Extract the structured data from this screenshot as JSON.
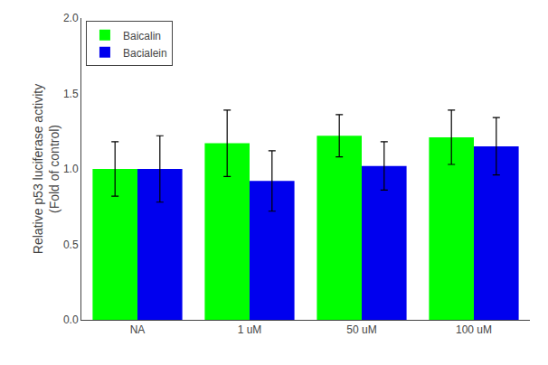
{
  "chart_data": {
    "type": "bar",
    "categories": [
      "NA",
      "1 uM",
      "50 uM",
      "100 uM"
    ],
    "series": [
      {
        "name": "Baicalin",
        "color": "#00FF00",
        "values": [
          1.0,
          1.17,
          1.22,
          1.21
        ],
        "errors": [
          0.18,
          0.22,
          0.14,
          0.18
        ]
      },
      {
        "name": "Bacialein",
        "color": "#0000EE",
        "values": [
          1.0,
          0.92,
          1.02,
          1.15
        ],
        "errors": [
          0.22,
          0.2,
          0.16,
          0.19
        ]
      }
    ],
    "ylabel": "Relative p53 luciferase activity\n(Fold of control)",
    "ylim": [
      0.0,
      2.0
    ],
    "yticks": [
      {
        "value": 0,
        "label": "0.0"
      },
      0.5,
      {
        "value": 1,
        "label": "1.0"
      },
      1.5,
      {
        "value": 2,
        "label": "2.0"
      }
    ],
    "grid": false,
    "legend": "upper left"
  }
}
